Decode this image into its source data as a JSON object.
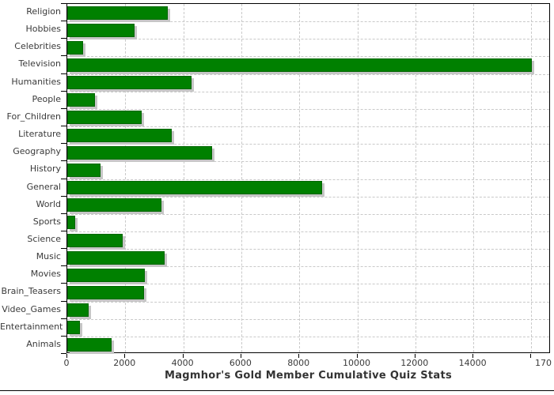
{
  "chart_data": {
    "type": "bar",
    "orientation": "horizontal",
    "title": "Magmhor's Gold Member Cumulative Quiz Stats",
    "categories": [
      "Religion",
      "Hobbies",
      "Celebrities",
      "Television",
      "Humanities",
      "People",
      "For_Children",
      "Literature",
      "Geography",
      "History",
      "General",
      "World",
      "Sports",
      "Science",
      "Music",
      "Movies",
      "Brain_Teasers",
      "Video_Games",
      "Entertainment",
      "Animals"
    ],
    "values": [
      3420,
      2260,
      490,
      15950,
      4230,
      900,
      2500,
      3560,
      4950,
      1090,
      8740,
      3200,
      220,
      1860,
      3310,
      2630,
      2580,
      670,
      380,
      1480
    ],
    "xlabel": "",
    "ylabel": "",
    "xlim": [
      0,
      16800
    ],
    "x_tick_interval": 2000,
    "x_ticks": [
      0,
      2000,
      4000,
      6000,
      8000,
      10000,
      12000,
      14000,
      16000
    ],
    "x_tick_labels": [
      "0",
      "2000",
      "4000",
      "6000",
      "8000",
      "10000",
      "12000",
      "14000",
      ""
    ],
    "x_edge_label": "170",
    "grid": "dashed",
    "legend": "none",
    "bar_color": "#008000",
    "bar_border_color": "#006600",
    "shadow_color": "#c6c6c6",
    "grid_color": "#c9c9c9",
    "axis_color": "#000000",
    "text_color": "#3a3a3a"
  }
}
